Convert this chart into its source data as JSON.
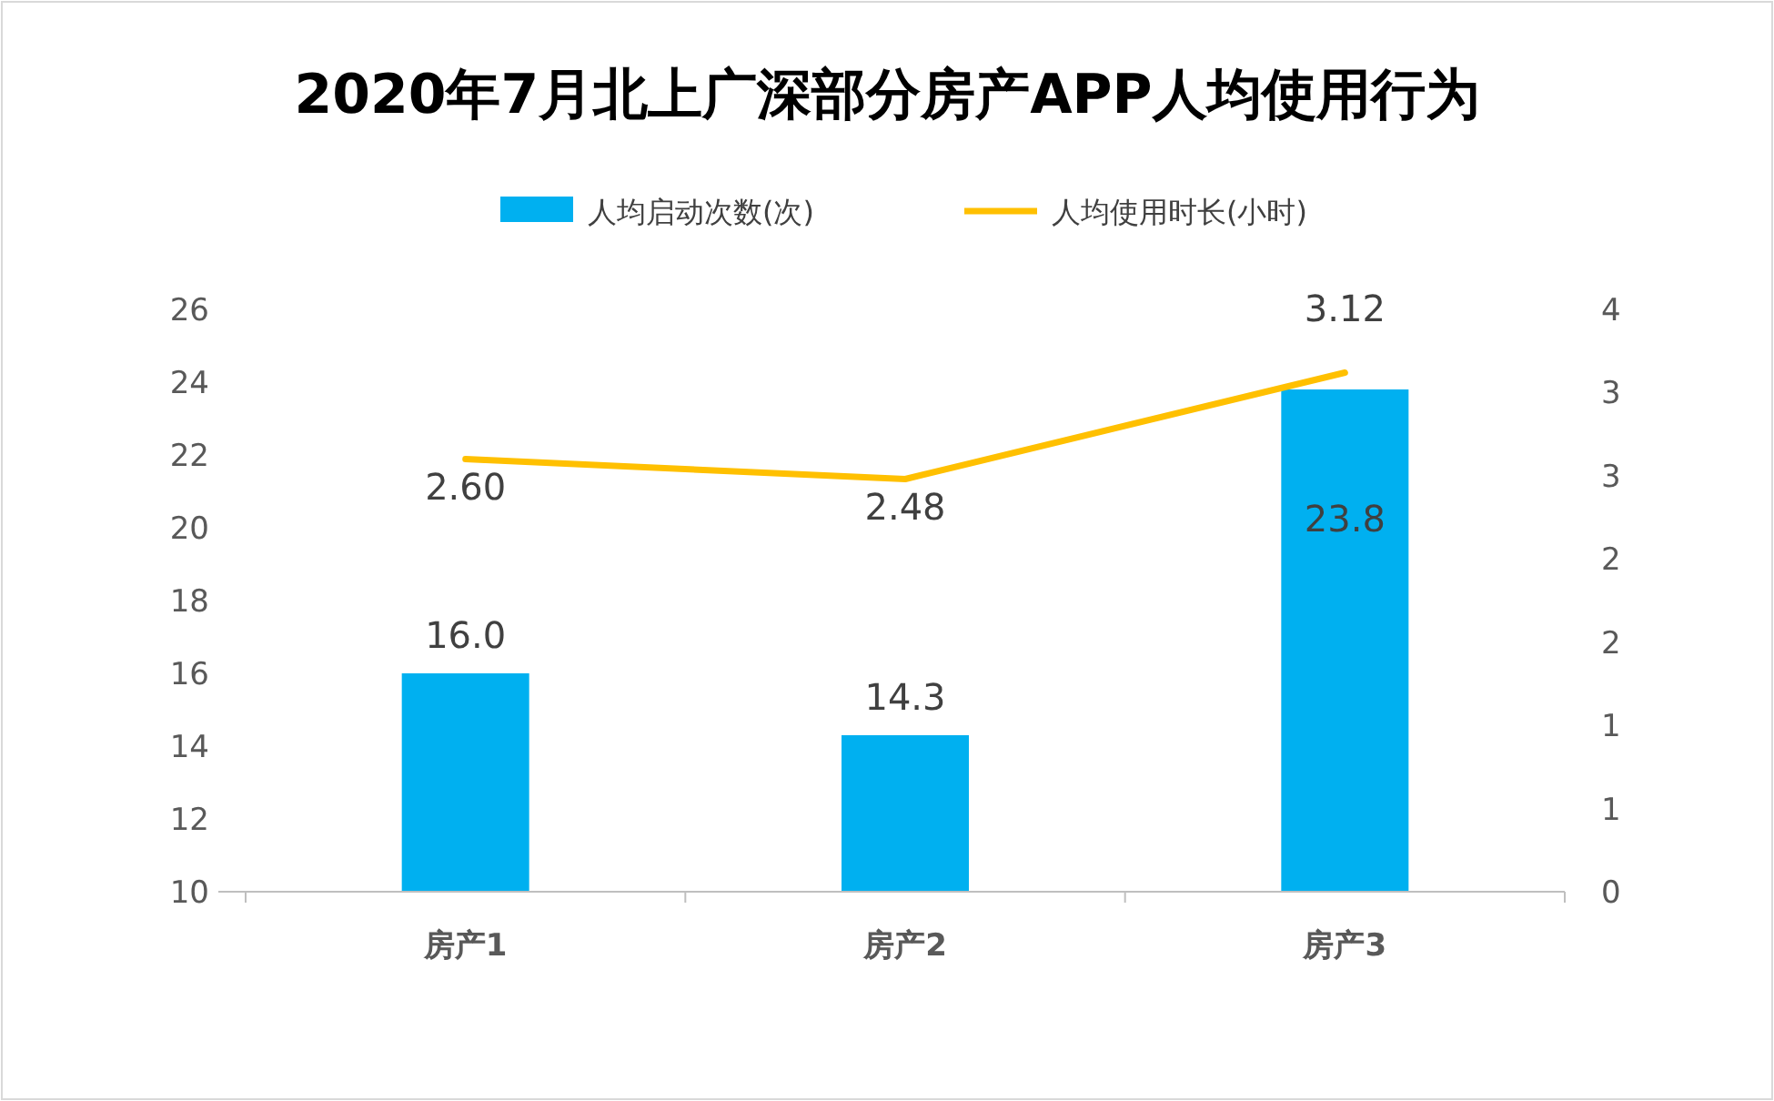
{
  "chart_data": {
    "type": "bar",
    "title": "2020年7月北上广深部分房产APP人均使用行为",
    "categories": [
      "房产1",
      "房产2",
      "房产3"
    ],
    "series": [
      {
        "name": "人均启动次数(次)",
        "color": "#00b0f0",
        "values": [
          16.0,
          14.3,
          23.8
        ],
        "value_labels": [
          "16.0",
          "14.3",
          "23.8"
        ]
      },
      {
        "name": "人均使用时长(小时)",
        "type": "line",
        "axis": "y2",
        "color": "#ffc000",
        "values": [
          2.6,
          2.48,
          3.12
        ],
        "value_labels": [
          "2.60",
          "2.48",
          "3.12"
        ]
      }
    ],
    "ylim": [
      10,
      26
    ],
    "yticks": [
      10,
      12,
      14,
      16,
      18,
      20,
      22,
      24,
      26
    ],
    "y2lim": [
      0,
      3.5
    ],
    "y2ticks": [
      0,
      {
        "value": 0.5,
        "label": "1"
      },
      1,
      {
        "value": 1.5,
        "label": "2"
      },
      2,
      {
        "value": 2.5,
        "label": "3"
      },
      3,
      {
        "value": 3.5,
        "label": "4"
      }
    ],
    "grid": false,
    "legend": "top",
    "marker": "none",
    "line_style": "solid"
  }
}
